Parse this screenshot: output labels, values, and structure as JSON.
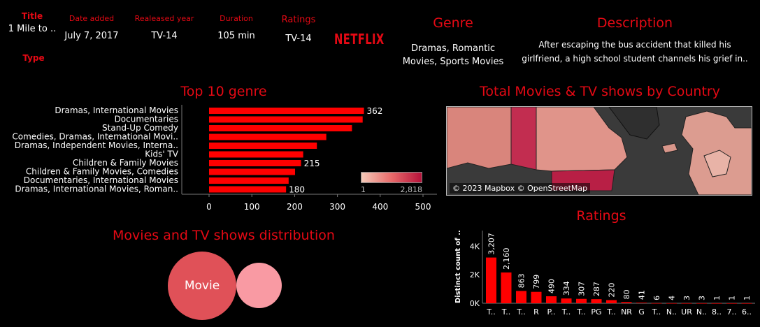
{
  "info": {
    "title_label": "Title",
    "title_value": "1 Mile to ..",
    "type_label": "Type",
    "date_label": "Date added",
    "date_value": "July 7, 2017",
    "year_label": "Realeased year",
    "year_value": "TV-14",
    "duration_label": "Duration",
    "duration_value": "105 min",
    "ratings_label": "Ratings",
    "ratings_value": "TV-14",
    "logo_text": "NETFLIX",
    "genre_label": "Genre",
    "genre_value_line1": "Dramas, Romantic",
    "genre_value_line2": "Movies, Sports Movies",
    "description_label": "Description",
    "description_line1": "After escaping the bus accident that killed his",
    "description_line2": "girlfriend, a high school student channels his grief in.."
  },
  "colors": {
    "accent": "#e50914",
    "bar": "#ff0000",
    "movie_bubble": "#e05158",
    "tv_bubble": "#f99aa3"
  },
  "legend": {
    "min_label": "1",
    "max_label": "2,818"
  },
  "map": {
    "title": "Total Movies & TV shows by Country",
    "attribution": "© 2023 Mapbox © OpenStreetMap"
  },
  "distribution": {
    "title": "Movies and TV shows distribution",
    "movie_label": "Movie"
  },
  "chart_data": [
    {
      "type": "bar",
      "orientation": "horizontal",
      "title": "Top 10 genre",
      "categories": [
        "Dramas, International Movies",
        "Documentaries",
        "Stand-Up Comedy",
        "Comedies, Dramas, International Movi..",
        "Dramas, Independent Movies, Interna..",
        "Kids' TV",
        "Children & Family Movies",
        "Children & Family Movies, Comedies",
        "Documentaries, International Movies",
        "Dramas, International Movies, Roman.."
      ],
      "values": [
        362,
        359,
        334,
        274,
        252,
        220,
        215,
        201,
        186,
        180
      ],
      "data_labels": [
        "362",
        "",
        "",
        "",
        "",
        "",
        "215",
        "",
        "",
        "180"
      ],
      "xlim": [
        0,
        500
      ],
      "xticks": [
        "0",
        "100",
        "200",
        "300",
        "400",
        "500"
      ],
      "grid": false
    },
    {
      "type": "bar",
      "title": "Ratings",
      "ylabel": "Distinct count of ..",
      "categories": [
        "T..",
        "T..",
        "T..",
        "R",
        "P..",
        "T..",
        "T..",
        "PG",
        "T..",
        "NR",
        "G",
        "T..",
        "N..",
        "UR",
        "N..",
        "8..",
        "7..",
        "6.."
      ],
      "values": [
        3207,
        2160,
        863,
        799,
        490,
        334,
        307,
        287,
        220,
        80,
        41,
        6,
        4,
        3,
        3,
        1,
        1,
        1
      ],
      "value_labels": [
        "3,207",
        "2,160",
        "863",
        "799",
        "490",
        "334",
        "307",
        "287",
        "220",
        "80",
        "41",
        "6",
        "4",
        "3",
        "3",
        "1",
        "1",
        "1"
      ],
      "ylim": [
        0,
        5000
      ],
      "yticks": [
        "0K",
        "2K",
        "4K"
      ],
      "grid": false
    }
  ]
}
